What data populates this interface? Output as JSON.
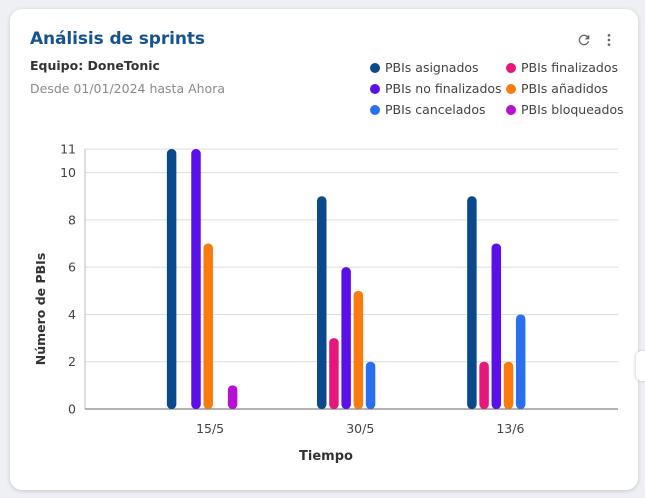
{
  "header": {
    "title": "Análisis de sprints",
    "team": "Equipo: DoneTonic",
    "range": "Desde 01/01/2024 hasta Ahora"
  },
  "actions": {
    "refresh_icon": "refresh-icon",
    "menu_icon": "more-vert-icon"
  },
  "chart_data": {
    "type": "bar",
    "categories": [
      "15/5",
      "30/5",
      "13/6"
    ],
    "xlabel": "Tiempo",
    "ylabel": "Número de PBIs",
    "ylim": [
      0,
      11
    ],
    "yticks": [
      0,
      2,
      4,
      6,
      8,
      10,
      11
    ],
    "grid": true,
    "legend_position": "top-right",
    "series": [
      {
        "name": "PBIs asignados",
        "color": "#0a4a8c",
        "values": [
          11,
          9,
          9
        ]
      },
      {
        "name": "PBIs finalizados",
        "color": "#e8157a",
        "values": [
          0,
          3,
          2
        ]
      },
      {
        "name": "PBIs no finalizados",
        "color": "#5a10e8",
        "values": [
          11,
          6,
          7
        ]
      },
      {
        "name": "PBIs añadidos",
        "color": "#fb7b0d",
        "values": [
          7,
          5,
          2
        ]
      },
      {
        "name": "PBIs cancelados",
        "color": "#2a6ff0",
        "values": [
          0,
          2,
          4
        ]
      },
      {
        "name": "PBIs bloqueados",
        "color": "#b610d0",
        "values": [
          1,
          0,
          0
        ]
      }
    ]
  }
}
